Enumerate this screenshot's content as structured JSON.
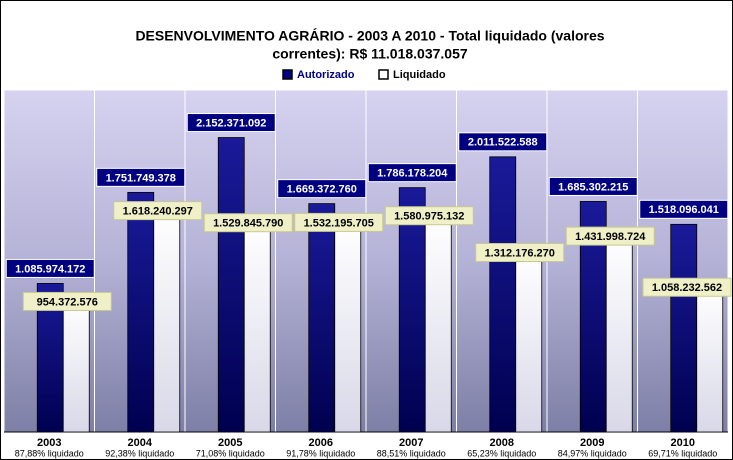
{
  "chart_data": {
    "type": "bar",
    "title": [
      "DESENVOLVIMENTO AGRÁRIO - 2003 A 2010 - Total liquidado (valores",
      "correntes): R$ 11.018.037.057"
    ],
    "categories": [
      "2003",
      "2004",
      "2005",
      "2006",
      "2007",
      "2008",
      "2009",
      "2010"
    ],
    "category_subtitles": [
      "87,88% liquidado",
      "92,38% liquidado",
      "71,08% liquidado",
      "91,78% liquidado",
      "88,51% liquidado",
      "65,23% liquidado",
      "84,97% liquidado",
      "69,71% liquidado"
    ],
    "ylim": [
      0,
      2500000000
    ],
    "legend": "top",
    "series": [
      {
        "name": "Autorizado",
        "color": "#000080",
        "values": [
          1085974172,
          1751749378,
          2152371092,
          1669372760,
          1786178204,
          2011522588,
          1685302215,
          1518096041
        ],
        "value_labels": [
          "1.085.974.172",
          "1.751.749.378",
          "2.152.371.092",
          "1.669.372.760",
          "1.786.178.204",
          "2.011.522.588",
          "1.685.302.215",
          "1.518.096.041"
        ]
      },
      {
        "name": "Liquidado",
        "color": "#ffffff",
        "values": [
          954372576,
          1618240297,
          1529845790,
          1532195705,
          1580975132,
          1312176270,
          1431998724,
          1058232562
        ],
        "value_labels": [
          "954.372.576",
          "1.618.240.297",
          "1.529.845.790",
          "1.532.195.705",
          "1.580.975.132",
          "1.312.176.270",
          "1.431.998.724",
          "1.058.232.562"
        ]
      }
    ]
  }
}
